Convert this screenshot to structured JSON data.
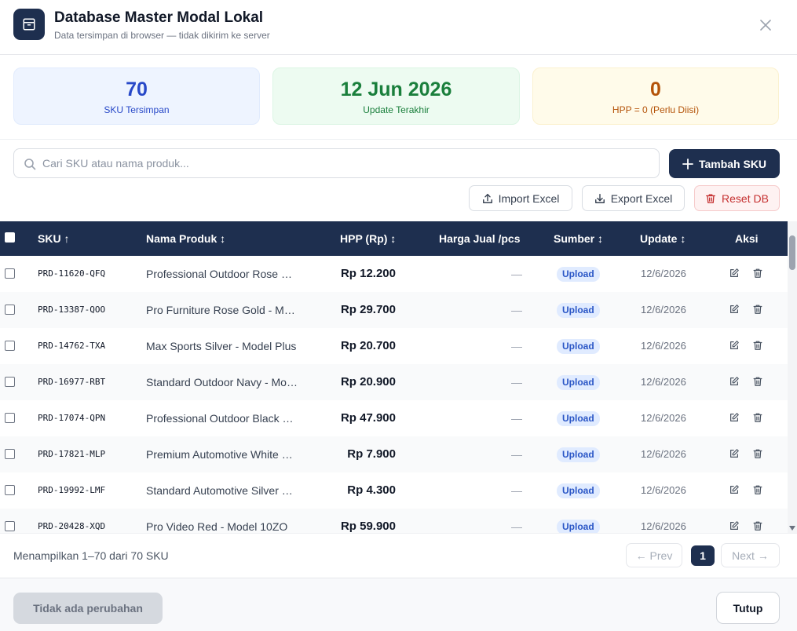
{
  "header": {
    "title": "Database Master Modal Lokal",
    "subtitle": "Data tersimpan di browser — tidak dikirim ke server",
    "icon": "archive-icon",
    "close_icon": "close-icon"
  },
  "stats": [
    {
      "value": "70",
      "label": "SKU Tersimpan",
      "color": "#2748c8"
    },
    {
      "value": "12 Jun 2026",
      "label": "Update Terakhir",
      "color": "#1a7f3c"
    },
    {
      "value": "0",
      "label": "HPP = 0 (Perlu Diisi)",
      "color": "#b45309"
    }
  ],
  "toolbar": {
    "search_placeholder": "Cari SKU atau nama produk...",
    "add_label": "Tambah SKU",
    "import_label": "Import Excel",
    "export_label": "Export Excel",
    "reset_label": "Reset DB"
  },
  "table": {
    "columns": {
      "sku": "SKU ↑",
      "name": "Nama Produk ↕",
      "hpp": "HPP (Rp) ↕",
      "harga": "Harga Jual /pcs",
      "source": "Sumber ↕",
      "update": "Update ↕",
      "actions": "Aksi"
    },
    "rows": [
      {
        "sku": "PRD-11620-QFQ",
        "name": "Professional Outdoor Rose Gold",
        "hpp": "Rp 12.200",
        "harga": "—",
        "source": "Upload",
        "date": "12/6/2026"
      },
      {
        "sku": "PRD-13387-QOO",
        "name": "Pro Furniture Rose Gold - Model",
        "hpp": "Rp 29.700",
        "harga": "—",
        "source": "Upload",
        "date": "12/6/2026"
      },
      {
        "sku": "PRD-14762-TXA",
        "name": "Max Sports Silver - Model Plus",
        "hpp": "Rp 20.700",
        "harga": "—",
        "source": "Upload",
        "date": "12/6/2026"
      },
      {
        "sku": "PRD-16977-RBT",
        "name": "Standard Outdoor Navy - Model",
        "hpp": "Rp 20.900",
        "harga": "—",
        "source": "Upload",
        "date": "12/6/2026"
      },
      {
        "sku": "PRD-17074-QPN",
        "name": "Professional Outdoor Black Edition",
        "hpp": "Rp 47.900",
        "harga": "—",
        "source": "Upload",
        "date": "12/6/2026"
      },
      {
        "sku": "PRD-17821-MLP",
        "name": "Premium Automotive White Edition",
        "hpp": "Rp 7.900",
        "harga": "—",
        "source": "Upload",
        "date": "12/6/2026"
      },
      {
        "sku": "PRD-19992-LMF",
        "name": "Standard Automotive Silver Edition",
        "hpp": "Rp 4.300",
        "harga": "—",
        "source": "Upload",
        "date": "12/6/2026"
      },
      {
        "sku": "PRD-20428-XQD",
        "name": "Pro Video Red - Model 10ZO",
        "hpp": "Rp 59.900",
        "harga": "—",
        "source": "Upload",
        "date": "12/6/2026"
      }
    ]
  },
  "pagination": {
    "info": "Menampilkan 1–70 dari 70 SKU",
    "prev": "← Prev",
    "current": "1",
    "next": "Next →"
  },
  "footer": {
    "save_label": "Tidak ada perubahan",
    "close_label": "Tutup"
  },
  "colors": {
    "primary": "#1e2f4f",
    "danger": "#c53030",
    "badge": "#2a56c6"
  }
}
